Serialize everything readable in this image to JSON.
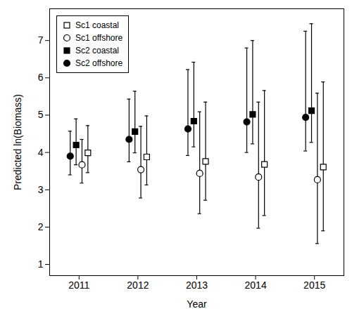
{
  "chart_data": {
    "type": "scatter",
    "x_label": "Year",
    "y_label": "Predicted ln(Biomass)",
    "categories": [
      "2011",
      "2012",
      "2013",
      "2014",
      "2015"
    ],
    "series": [
      {
        "name": "Sc1 coastal",
        "color": "#000000",
        "marker": "open-square",
        "values": [
          3.99,
          3.88,
          3.76,
          3.68,
          3.61
        ],
        "lower": [
          3.46,
          3.13,
          2.72,
          2.31,
          1.9
        ],
        "upper": [
          4.72,
          4.98,
          5.35,
          5.66,
          5.89
        ]
      },
      {
        "name": "Sc1 offshore",
        "color": "#000000",
        "marker": "open-circle",
        "values": [
          3.67,
          3.54,
          3.44,
          3.34,
          3.27
        ],
        "lower": [
          3.18,
          2.78,
          2.36,
          1.97,
          1.56
        ],
        "upper": [
          4.35,
          4.7,
          5.09,
          5.35,
          5.59
        ]
      },
      {
        "name": "Sc2 coastal",
        "color": "#000000",
        "marker": "square",
        "values": [
          4.2,
          4.56,
          4.84,
          5.02,
          5.12
        ],
        "lower": [
          3.67,
          3.99,
          4.15,
          4.23,
          4.27
        ],
        "upper": [
          4.9,
          5.64,
          6.42,
          7.0,
          7.45
        ]
      },
      {
        "name": "Sc2 offshore",
        "color": "#000000",
        "marker": "circle",
        "values": [
          3.9,
          4.35,
          4.63,
          4.82,
          4.94
        ],
        "lower": [
          3.4,
          3.75,
          3.92,
          4.0,
          4.04
        ],
        "upper": [
          4.57,
          5.43,
          6.22,
          6.8,
          7.25
        ]
      }
    ],
    "ylim": [
      0.7,
      7.85
    ],
    "yticks": [
      1,
      2,
      3,
      4,
      5,
      6,
      7
    ],
    "grid": false,
    "legend": "top-left"
  }
}
